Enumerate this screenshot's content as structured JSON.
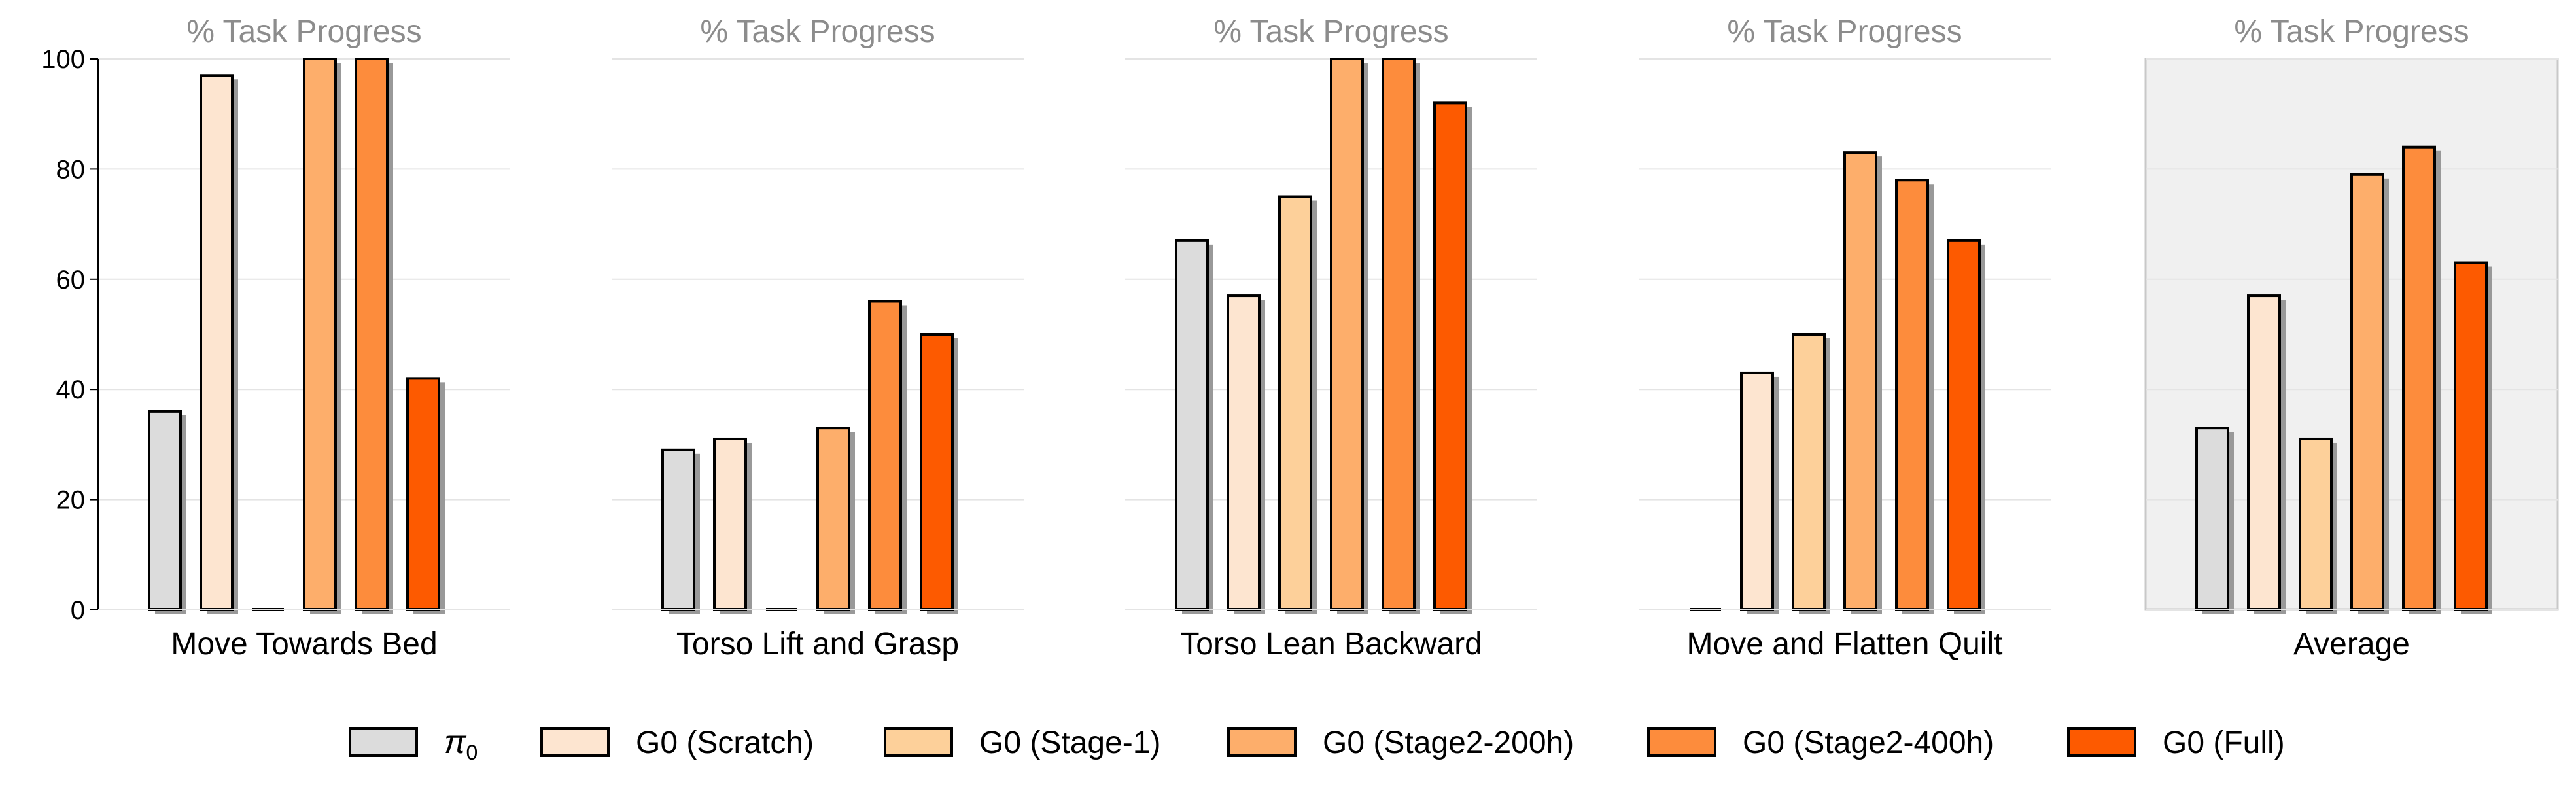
{
  "chart_data": [
    {
      "type": "bar",
      "title": "% Task Progress",
      "category": "Move Towards Bed",
      "series_values": [
        36,
        97,
        0,
        100,
        100,
        42
      ],
      "ylim": [
        0,
        100
      ],
      "yticks": [
        0,
        20,
        40,
        60,
        80,
        100
      ],
      "ytick_labels": [
        "0",
        "20",
        "40",
        "60",
        "80",
        "100"
      ],
      "grid": true,
      "highlight": false
    },
    {
      "type": "bar",
      "title": "% Task Progress",
      "category": "Torso Lift and Grasp",
      "series_values": [
        29,
        31,
        0,
        33,
        56,
        50
      ],
      "ylim": [
        0,
        100
      ],
      "yticks": [
        0,
        20,
        40,
        60,
        80,
        100
      ],
      "grid": true,
      "highlight": false
    },
    {
      "type": "bar",
      "title": "% Task Progress",
      "category": "Torso Lean Backward",
      "series_values": [
        67,
        57,
        75,
        100,
        100,
        92
      ],
      "ylim": [
        0,
        100
      ],
      "yticks": [
        0,
        20,
        40,
        60,
        80,
        100
      ],
      "grid": true,
      "highlight": false
    },
    {
      "type": "bar",
      "title": "% Task Progress",
      "category": "Move and Flatten Quilt",
      "series_values": [
        0,
        43,
        50,
        83,
        78,
        67
      ],
      "ylim": [
        0,
        100
      ],
      "yticks": [
        0,
        20,
        40,
        60,
        80,
        100
      ],
      "grid": true,
      "highlight": false
    },
    {
      "type": "bar",
      "title": "% Task Progress",
      "category": "Average",
      "series_values": [
        33,
        57,
        31,
        79,
        84,
        63
      ],
      "ylim": [
        0,
        100
      ],
      "yticks": [
        0,
        20,
        40,
        60,
        80,
        100
      ],
      "grid": true,
      "highlight": true
    }
  ],
  "legend": {
    "placement": "bottom-center",
    "items": [
      {
        "symbol": "π",
        "subscript": "0",
        "color": "#dcdcdc"
      },
      {
        "label": "G0 (Scratch)",
        "color": "#fde5d0"
      },
      {
        "label": "G0 (Stage-1)",
        "color": "#fdd09a"
      },
      {
        "label": "G0 (Stage2-200h)",
        "color": "#fdae6b"
      },
      {
        "label": "G0 (Stage2-400h)",
        "color": "#fd8c3c"
      },
      {
        "label": "G0 (Full)",
        "color": "#fd5a00"
      }
    ]
  },
  "colors": {
    "bar_edge": "#000000",
    "bar_shadow": "#999999",
    "grid": "#e4e4e4",
    "highlight_bg": "#f0f0f0",
    "highlight_border": "#c8c8c8"
  }
}
